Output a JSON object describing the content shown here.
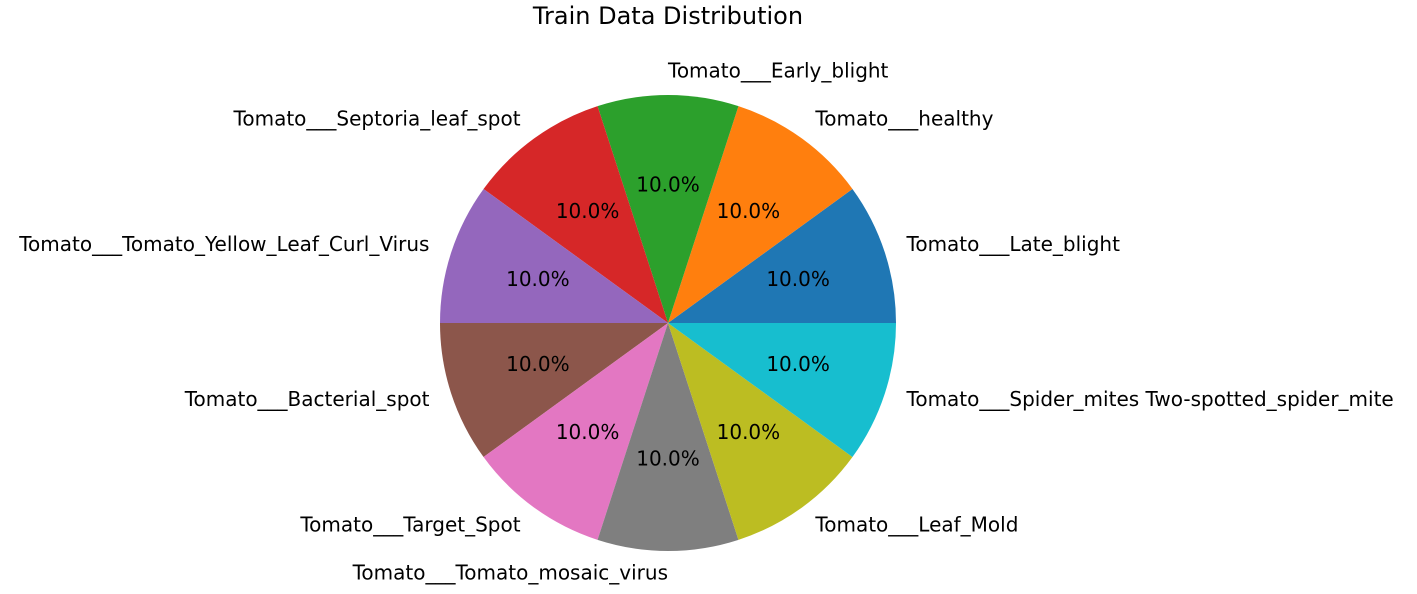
{
  "chart_data": {
    "type": "pie",
    "title": "Train Data Distribution",
    "categories": [
      "Tomato___Late_blight",
      "Tomato___healthy",
      "Tomato___Early_blight",
      "Tomato___Septoria_leaf_spot",
      "Tomato___Tomato_Yellow_Leaf_Curl_Virus",
      "Tomato___Bacterial_spot",
      "Tomato___Target_Spot",
      "Tomato___Tomato_mosaic_virus",
      "Tomato___Leaf_Mold",
      "Tomato___Spider_mites Two-spotted_spider_mite"
    ],
    "values": [
      10,
      10,
      10,
      10,
      10,
      10,
      10,
      10,
      10,
      10
    ],
    "value_labels": [
      "10.0%",
      "10.0%",
      "10.0%",
      "10.0%",
      "10.0%",
      "10.0%",
      "10.0%",
      "10.0%",
      "10.0%",
      "10.0%"
    ],
    "colors": [
      "#1f77b4",
      "#ff7f0e",
      "#2ca02c",
      "#d62728",
      "#9467bd",
      "#8c564b",
      "#e377c2",
      "#7f7f7f",
      "#bcbd22",
      "#17becf"
    ]
  }
}
